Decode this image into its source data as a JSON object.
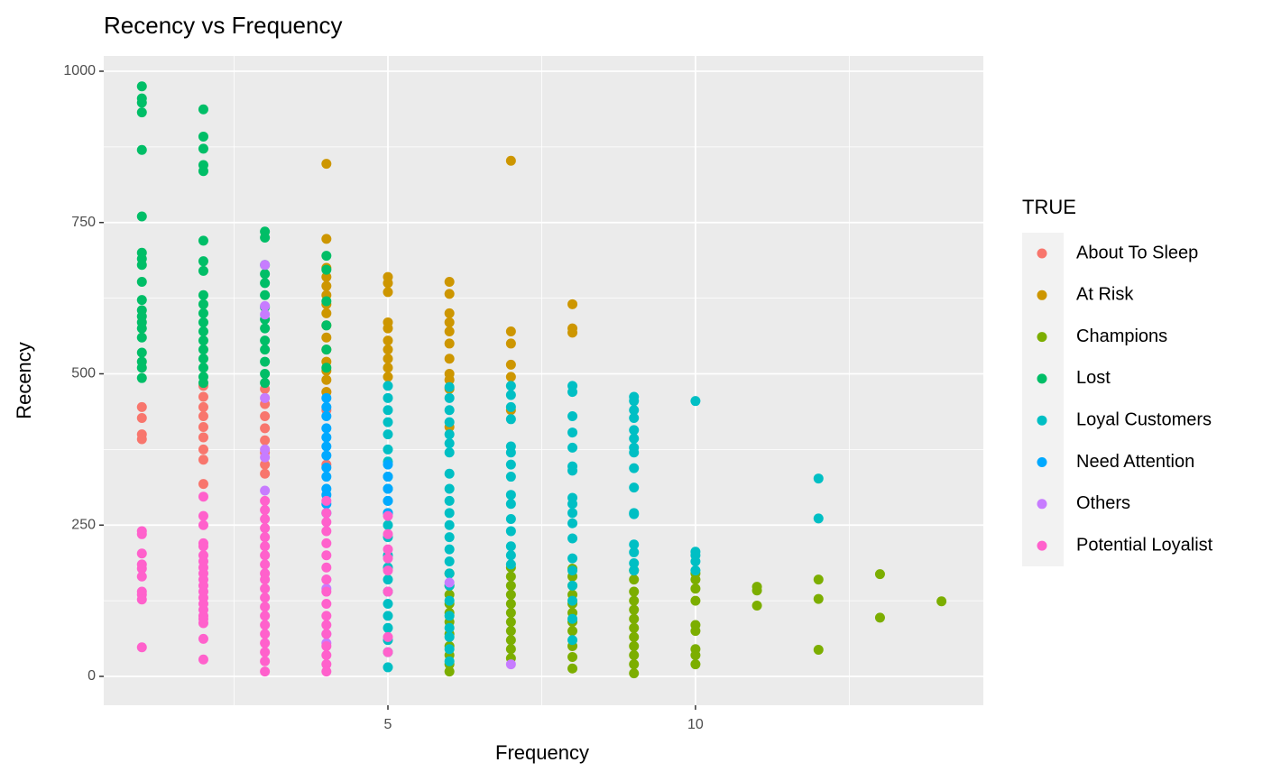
{
  "chart_data": {
    "type": "scatter",
    "title": "Recency vs Frequency",
    "x_label": "Frequency",
    "y_label": "Recency",
    "legend_title": "TRUE",
    "legend_position": "right",
    "xlim": [
      0.38,
      14.68
    ],
    "ylim": [
      -47.7,
      1025.3
    ],
    "xticks": [
      5,
      10
    ],
    "yticks": [
      0,
      250,
      500,
      750,
      1000
    ],
    "x_minor_grid": [
      2.5,
      7.5,
      12.5
    ],
    "y_minor_grid": [
      125,
      375,
      625,
      875
    ],
    "grid": true,
    "series": [
      {
        "name": "About To Sleep",
        "color": "#F8766D",
        "x": [
          1,
          1,
          1,
          1,
          2,
          2,
          2,
          2,
          2,
          2,
          2,
          2,
          2,
          3,
          3,
          3,
          3,
          3,
          3,
          3,
          3,
          4,
          4,
          4
        ],
        "values": [
          445,
          427,
          400,
          392,
          480,
          462,
          445,
          430,
          412,
          395,
          375,
          358,
          318,
          475,
          450,
          430,
          410,
          390,
          370,
          350,
          335,
          470,
          440,
          350
        ]
      },
      {
        "name": "At Risk",
        "color": "#CD9600",
        "x": [
          4,
          4,
          4,
          4,
          4,
          4,
          4,
          4,
          4,
          4,
          4,
          4,
          4,
          4,
          4,
          5,
          5,
          5,
          5,
          5,
          5,
          5,
          5,
          5,
          5,
          6,
          6,
          6,
          6,
          6,
          6,
          6,
          6,
          6,
          6,
          6,
          7,
          7,
          7,
          7,
          7,
          7,
          8,
          8,
          8
        ],
        "values": [
          847,
          723,
          675,
          660,
          645,
          630,
          615,
          600,
          580,
          560,
          540,
          520,
          505,
          490,
          470,
          660,
          650,
          635,
          585,
          575,
          555,
          540,
          525,
          510,
          495,
          652,
          632,
          600,
          585,
          570,
          550,
          525,
          500,
          490,
          475,
          412,
          852,
          570,
          550,
          515,
          495,
          440,
          615,
          575,
          568
        ]
      },
      {
        "name": "Champions",
        "color": "#7CAE00",
        "x": [
          6,
          6,
          6,
          6,
          6,
          6,
          6,
          6,
          6,
          6,
          6,
          7,
          7,
          7,
          7,
          7,
          7,
          7,
          7,
          7,
          7,
          7,
          8,
          8,
          8,
          8,
          8,
          8,
          8,
          8,
          8,
          8,
          8,
          9,
          9,
          9,
          9,
          9,
          9,
          9,
          9,
          9,
          9,
          9,
          9,
          10,
          10,
          10,
          10,
          10,
          10,
          10,
          10,
          10,
          11,
          11,
          11,
          12,
          12,
          12,
          13,
          13,
          14
        ],
        "values": [
          170,
          150,
          135,
          120,
          105,
          90,
          70,
          50,
          35,
          20,
          8,
          180,
          165,
          150,
          135,
          120,
          105,
          90,
          75,
          60,
          45,
          30,
          178,
          165,
          150,
          135,
          120,
          105,
          90,
          75,
          50,
          32,
          13,
          175,
          160,
          140,
          125,
          110,
          95,
          80,
          65,
          50,
          35,
          20,
          5,
          170,
          160,
          145,
          125,
          85,
          75,
          45,
          35,
          20,
          148,
          142,
          117,
          160,
          128,
          44,
          169,
          97,
          124
        ]
      },
      {
        "name": "Lost",
        "color": "#00BE67",
        "x": [
          1,
          1,
          1,
          1,
          1,
          1,
          1,
          1,
          1,
          1,
          1,
          1,
          1,
          1,
          1,
          1,
          1,
          1,
          1,
          1,
          2,
          2,
          2,
          2,
          2,
          2,
          2,
          2,
          2,
          2,
          2,
          2,
          2,
          2,
          2,
          2,
          2,
          2,
          2,
          3,
          3,
          3,
          3,
          3,
          3,
          3,
          3,
          3,
          3,
          3,
          3,
          3,
          3,
          4,
          4,
          4,
          4,
          4,
          4
        ],
        "values": [
          975,
          955,
          948,
          932,
          870,
          760,
          700,
          690,
          680,
          652,
          622,
          605,
          595,
          585,
          575,
          560,
          535,
          520,
          510,
          493,
          937,
          892,
          872,
          845,
          835,
          720,
          686,
          670,
          630,
          615,
          600,
          585,
          570,
          555,
          540,
          525,
          510,
          495,
          485,
          735,
          725,
          680,
          665,
          650,
          630,
          610,
          590,
          575,
          555,
          540,
          520,
          500,
          485,
          695,
          672,
          620,
          580,
          540,
          510
        ]
      },
      {
        "name": "Loyal Customers",
        "color": "#00BFC4",
        "x": [
          5,
          5,
          5,
          5,
          5,
          5,
          5,
          5,
          5,
          5,
          5,
          5,
          5,
          5,
          5,
          5,
          5,
          5,
          5,
          5,
          5,
          5,
          5,
          6,
          6,
          6,
          6,
          6,
          6,
          6,
          6,
          6,
          6,
          6,
          6,
          6,
          6,
          6,
          6,
          6,
          6,
          6,
          6,
          6,
          6,
          6,
          7,
          7,
          7,
          7,
          7,
          7,
          7,
          7,
          7,
          7,
          7,
          7,
          7,
          7,
          7,
          8,
          8,
          8,
          8,
          8,
          8,
          8,
          8,
          8,
          8,
          8,
          8,
          8,
          8,
          8,
          8,
          8,
          8,
          9,
          9,
          9,
          9,
          9,
          9,
          9,
          9,
          9,
          9,
          9,
          9,
          9,
          9,
          9,
          9,
          10,
          10,
          10,
          10,
          10,
          12,
          12
        ],
        "values": [
          480,
          460,
          440,
          420,
          400,
          375,
          355,
          330,
          310,
          290,
          270,
          250,
          230,
          200,
          180,
          160,
          140,
          120,
          100,
          80,
          60,
          40,
          15,
          478,
          460,
          440,
          420,
          400,
          385,
          370,
          335,
          310,
          290,
          270,
          250,
          230,
          210,
          190,
          170,
          150,
          125,
          100,
          80,
          65,
          45,
          25,
          480,
          465,
          445,
          425,
          380,
          370,
          350,
          330,
          300,
          285,
          260,
          240,
          215,
          200,
          185,
          480,
          470,
          430,
          403,
          378,
          347,
          340,
          295,
          285,
          270,
          253,
          228,
          195,
          175,
          150,
          125,
          95,
          60,
          462,
          455,
          440,
          427,
          407,
          393,
          378,
          370,
          344,
          312,
          270,
          268,
          218,
          205,
          187,
          175,
          455,
          206,
          200,
          190,
          175,
          327,
          261
        ]
      },
      {
        "name": "Need Attention",
        "color": "#00A9FF",
        "x": [
          4,
          4,
          4,
          4,
          4,
          4,
          4,
          4,
          4,
          4,
          4,
          4,
          4,
          5,
          5,
          5,
          5,
          5
        ],
        "values": [
          460,
          445,
          430,
          410,
          395,
          380,
          365,
          345,
          330,
          310,
          300,
          285,
          270,
          350,
          330,
          310,
          290,
          270
        ]
      },
      {
        "name": "Others",
        "color": "#C77CFF",
        "x": [
          3,
          3,
          3,
          3,
          3,
          3,
          3,
          4,
          4,
          4,
          4,
          6,
          7
        ],
        "values": [
          680,
          612,
          598,
          460,
          375,
          362,
          307,
          160,
          145,
          70,
          55,
          155,
          20
        ]
      },
      {
        "name": "Potential Loyalist",
        "color": "#FF61CC",
        "x": [
          1,
          1,
          1,
          1,
          1,
          1,
          1,
          1,
          1,
          1,
          2,
          2,
          2,
          2,
          2,
          2,
          2,
          2,
          2,
          2,
          2,
          2,
          2,
          2,
          2,
          2,
          2,
          2,
          2,
          2,
          3,
          3,
          3,
          3,
          3,
          3,
          3,
          3,
          3,
          3,
          3,
          3,
          3,
          3,
          3,
          3,
          3,
          3,
          3,
          3,
          4,
          4,
          4,
          4,
          4,
          4,
          4,
          4,
          4,
          4,
          4,
          4,
          4,
          4,
          4,
          4,
          4,
          5,
          5,
          5,
          5,
          5,
          5,
          5,
          5
        ],
        "values": [
          240,
          235,
          203,
          185,
          178,
          165,
          140,
          135,
          127,
          48,
          297,
          265,
          250,
          220,
          215,
          200,
          190,
          180,
          170,
          160,
          150,
          140,
          130,
          120,
          110,
          100,
          95,
          88,
          62,
          28,
          290,
          275,
          260,
          245,
          230,
          215,
          200,
          185,
          170,
          160,
          145,
          130,
          115,
          100,
          85,
          70,
          55,
          40,
          25,
          8,
          290,
          270,
          255,
          240,
          220,
          200,
          180,
          160,
          140,
          120,
          100,
          85,
          70,
          50,
          35,
          20,
          8,
          265,
          235,
          210,
          195,
          175,
          140,
          65,
          40
        ]
      }
    ]
  }
}
